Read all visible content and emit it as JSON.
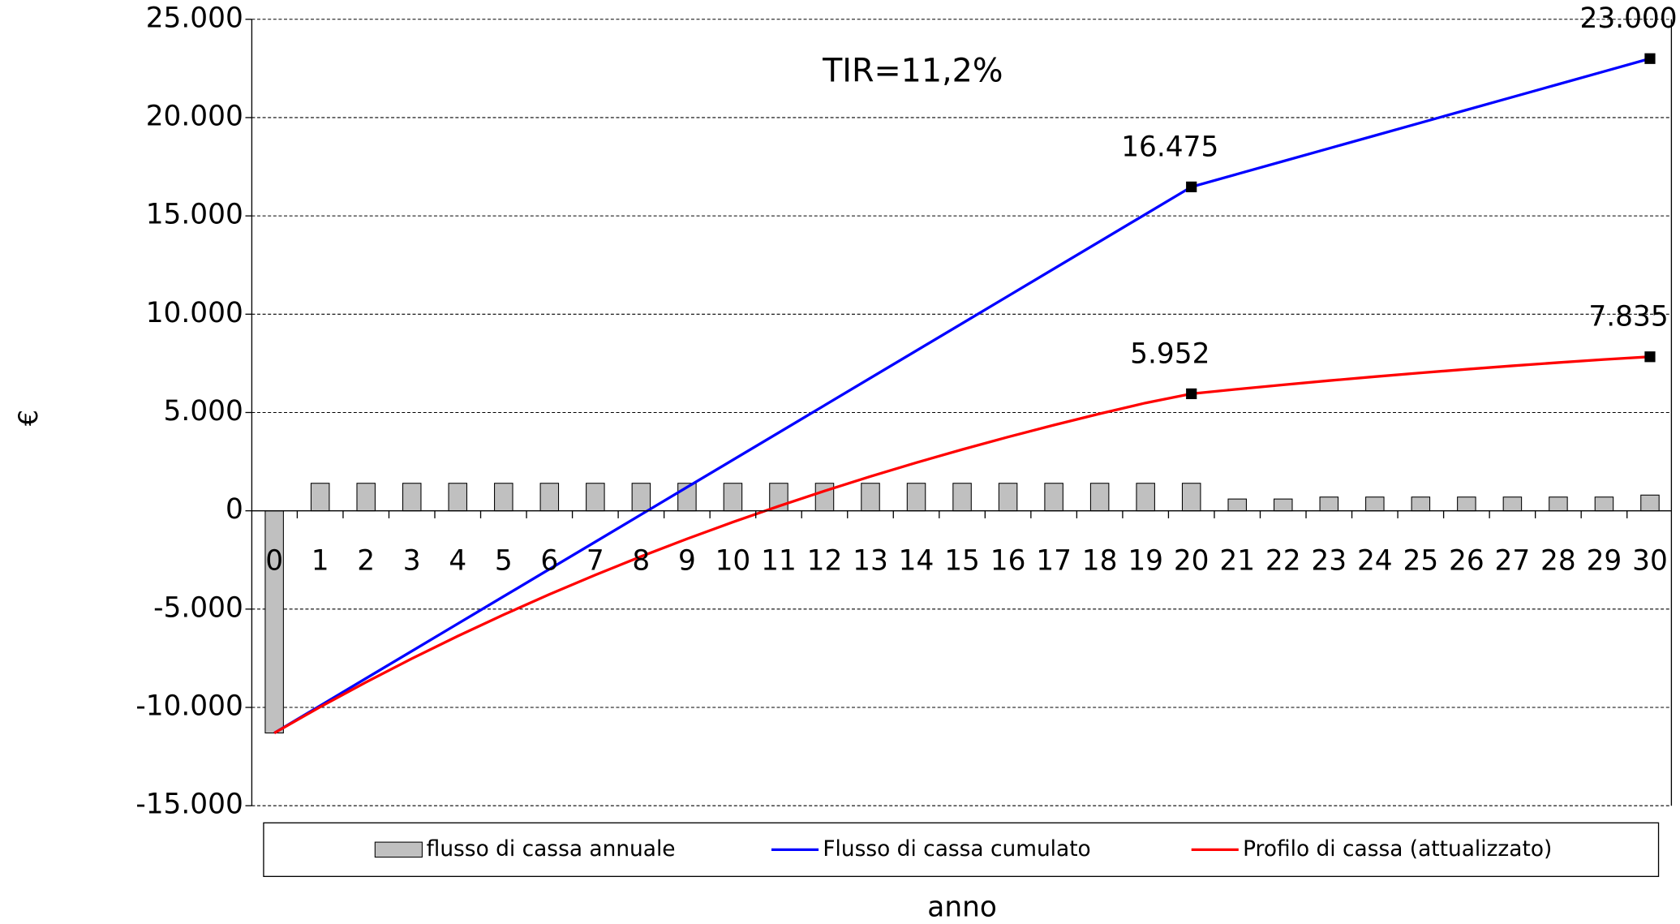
{
  "chart_data": {
    "type": "bar_line",
    "annotation": "TIR=11,2%",
    "xlabel": "anno",
    "ylabel": "€",
    "categories": [
      "0",
      "1",
      "2",
      "3",
      "4",
      "5",
      "6",
      "7",
      "8",
      "9",
      "10",
      "11",
      "12",
      "13",
      "14",
      "15",
      "16",
      "17",
      "18",
      "19",
      "20",
      "21",
      "22",
      "23",
      "24",
      "25",
      "26",
      "27",
      "28",
      "29",
      "30"
    ],
    "ylim": [
      -15000,
      25000
    ],
    "yticks": [
      {
        "value": -15000,
        "label": "-15.000"
      },
      {
        "value": -10000,
        "label": "-10.000"
      },
      {
        "value": -5000,
        "label": "-5.000"
      },
      0,
      {
        "value": 5000,
        "label": "5.000"
      },
      {
        "value": 10000,
        "label": "10.000"
      },
      {
        "value": 15000,
        "label": "15.000"
      },
      {
        "value": 20000,
        "label": "20.000"
      },
      {
        "value": 25000,
        "label": "25.000"
      }
    ],
    "grid": true,
    "series": [
      {
        "name": "flusso di cassa annuale",
        "kind": "bar",
        "color": "#c0c0c0",
        "values": [
          -11300,
          1400,
          1400,
          1400,
          1400,
          1400,
          1400,
          1400,
          1400,
          1400,
          1400,
          1400,
          1400,
          1400,
          1400,
          1400,
          1400,
          1400,
          1400,
          1400,
          1400,
          600,
          600,
          700,
          700,
          700,
          700,
          700,
          700,
          700,
          800
        ]
      },
      {
        "name": "Flusso di cassa cumulato",
        "kind": "line",
        "color": "#0000ff",
        "values": [
          -11300,
          -9911,
          -8523,
          -7134,
          -5745,
          -4356,
          -2968,
          -1579,
          -190,
          1199,
          2588,
          3976,
          5365,
          6754,
          8143,
          9531,
          10920,
          12309,
          13698,
          15086,
          16475,
          17128,
          17780,
          18433,
          19085,
          19738,
          20390,
          21043,
          21695,
          22348,
          23000
        ],
        "value_labels": [
          null,
          null,
          null,
          null,
          null,
          null,
          null,
          null,
          null,
          null,
          null,
          null,
          null,
          null,
          null,
          null,
          null,
          null,
          null,
          null,
          "16.475",
          null,
          null,
          null,
          null,
          null,
          null,
          null,
          null,
          null,
          "23.000"
        ]
      },
      {
        "name": "Profilo di cassa (attualizzato)",
        "kind": "line",
        "color": "#ff0000",
        "values": [
          -11300,
          -9977,
          -8717,
          -7517,
          -6374,
          -5286,
          -4250,
          -3263,
          -2323,
          -1428,
          -575,
          237,
          1010,
          1747,
          2449,
          3117,
          3753,
          4359,
          4936,
          5486,
          5952,
          6186,
          6409,
          6621,
          6823,
          7016,
          7199,
          7374,
          7540,
          7698,
          7835
        ],
        "value_labels": [
          null,
          null,
          null,
          null,
          null,
          null,
          null,
          null,
          null,
          null,
          null,
          null,
          null,
          null,
          null,
          null,
          null,
          null,
          null,
          null,
          "5.952",
          null,
          null,
          null,
          null,
          null,
          null,
          null,
          null,
          null,
          "7.835"
        ]
      }
    ]
  }
}
